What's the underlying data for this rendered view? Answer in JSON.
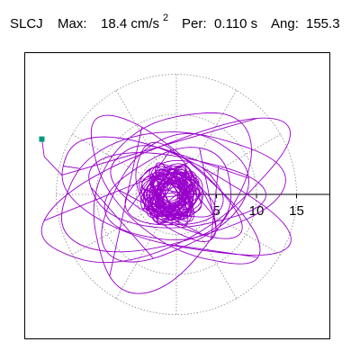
{
  "header": {
    "station": "SLCJ",
    "max_label": "Max:",
    "max_value": "18.4 cm/s",
    "max_exp": "2",
    "per_label": "Per:",
    "per_value": "0.110 s",
    "ang_label": "Ang:",
    "ang_value": "155.3"
  },
  "chart_data": {
    "type": "scatter",
    "subtype": "polar particle-motion orbit",
    "title": "SLCJ  Max: 18.4 cm/s2  Per: 0.110 s  Ang: 155.3",
    "unit": "cm/s2",
    "max_amplitude": 18.4,
    "period_s": 0.11,
    "angle_deg": 155.3,
    "radial_ticks": [
      5,
      10,
      15
    ],
    "radial_tick_labels": [
      "5",
      "10",
      "15"
    ],
    "rings": [
      5,
      10,
      15
    ],
    "spokes_deg": [
      0,
      30,
      60,
      90,
      120,
      150,
      180,
      210,
      240,
      270,
      300,
      330
    ],
    "axis_range": [
      -18.5,
      18.5
    ],
    "trace": {
      "color": "#9900cc",
      "start_marker": {
        "x": -16.8,
        "y": 6.9,
        "color": "#009977"
      },
      "orbits": [
        {
          "a": 16.5,
          "b": 6.0,
          "rot": 25,
          "ph": 0.6,
          "cx": -1.4,
          "cy": 0.2,
          "sw": 0.8
        },
        {
          "a": 15.0,
          "b": 5.5,
          "rot": -20,
          "ph": 1.5,
          "cx": -1.0,
          "cy": -0.6,
          "sw": 0.7
        },
        {
          "a": 14.0,
          "b": 7.0,
          "rot": 10,
          "ph": 2.4,
          "cx": -1.2,
          "cy": 0.4,
          "sw": 0.9
        },
        {
          "a": 13.0,
          "b": 5.0,
          "rot": -40,
          "ph": 0.2,
          "cx": -0.8,
          "cy": 0.0,
          "sw": 0.8
        },
        {
          "a": 12.5,
          "b": 8.0,
          "rot": 55,
          "ph": 3.1,
          "cx": -1.0,
          "cy": -0.3,
          "sw": 0.6
        },
        {
          "a": 11.0,
          "b": 4.5,
          "rot": -5,
          "ph": 1.0,
          "cx": -0.6,
          "cy": 0.5,
          "sw": 0.9
        },
        {
          "a": 10.0,
          "b": 6.5,
          "rot": 35,
          "ph": 4.0,
          "cx": -0.4,
          "cy": -0.4,
          "sw": 0.7
        },
        {
          "a": 9.0,
          "b": 4.0,
          "rot": -30,
          "ph": 2.0,
          "cx": -0.2,
          "cy": 0.3,
          "sw": 0.8
        },
        {
          "a": 8.0,
          "b": 5.5,
          "rot": 15,
          "ph": 5.0,
          "cx": -0.5,
          "cy": -0.2,
          "sw": 0.9
        },
        {
          "a": 7.0,
          "b": 3.5,
          "rot": -55,
          "ph": 0.5,
          "cx": -0.3,
          "cy": 0.1,
          "sw": 0.7
        },
        {
          "a": 6.0,
          "b": 4.0,
          "rot": 5,
          "ph": 3.5,
          "cx": -0.2,
          "cy": -0.1,
          "sw": 0.8
        },
        {
          "a": 5.0,
          "b": 2.5,
          "rot": -25,
          "ph": 1.8,
          "cx": -0.1,
          "cy": 0.2,
          "sw": 0.9
        }
      ],
      "core": {
        "orbits": 45,
        "rx": 3.6,
        "ry": 2.4,
        "cx": -0.6,
        "cy": 0.0
      }
    }
  }
}
